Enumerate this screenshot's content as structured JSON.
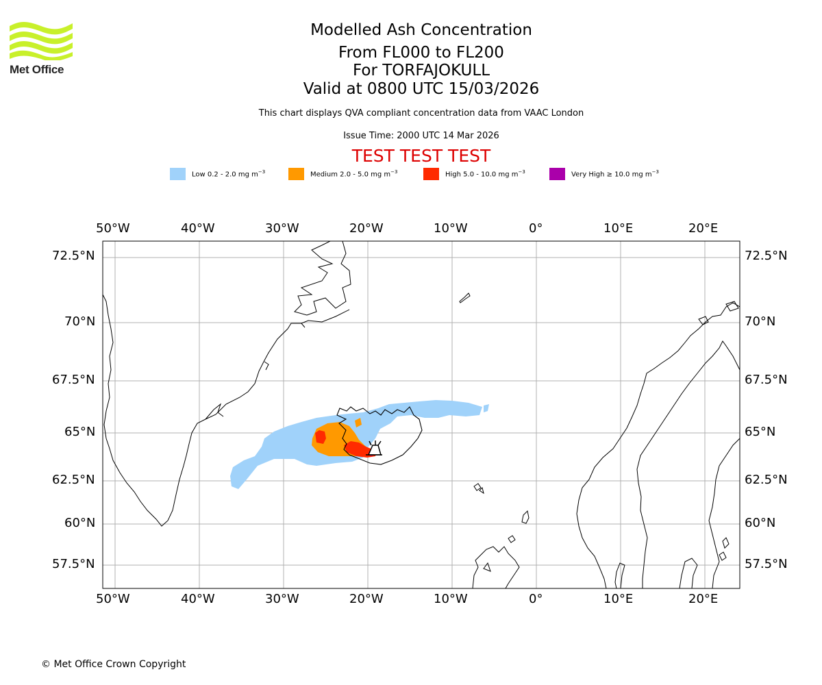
{
  "logo": {
    "text": "Met Office"
  },
  "header": {
    "title_lines": [
      "Modelled Ash Concentration",
      "From FL000 to FL200",
      "For TORFAJOKULL",
      "Valid at 0800 UTC 15/03/2026"
    ],
    "description": "This chart displays QVA compliant concentration data from VAAC London",
    "issue_time": "Issue Time: 2000 UTC 14 Mar 2026",
    "test_banner": "TEST TEST TEST"
  },
  "legend": [
    {
      "label": "Low 0.2 - 2.0 mg m",
      "color": "#a0d2fa"
    },
    {
      "label": "Medium 2.0 - 5.0 mg m",
      "color": "#ff9900"
    },
    {
      "label": "High 5.0 - 10.0 mg m",
      "color": "#ff2a00"
    },
    {
      "label": "Very High ≥ 10.0 mg m",
      "color": "#aa00aa"
    }
  ],
  "legend_unit_exponent": "−3",
  "map": {
    "lon_ticks": [
      "50°W",
      "40°W",
      "30°W",
      "20°W",
      "10°W",
      "0°",
      "10°E",
      "20°E"
    ],
    "lat_ticks": [
      "72.5°N",
      "70°N",
      "67.5°N",
      "65°N",
      "62.5°N",
      "60°N",
      "57.5°N"
    ],
    "volcano_icon": "volcano-icon"
  },
  "footer": {
    "copyright": "© Met Office Crown Copyright"
  }
}
